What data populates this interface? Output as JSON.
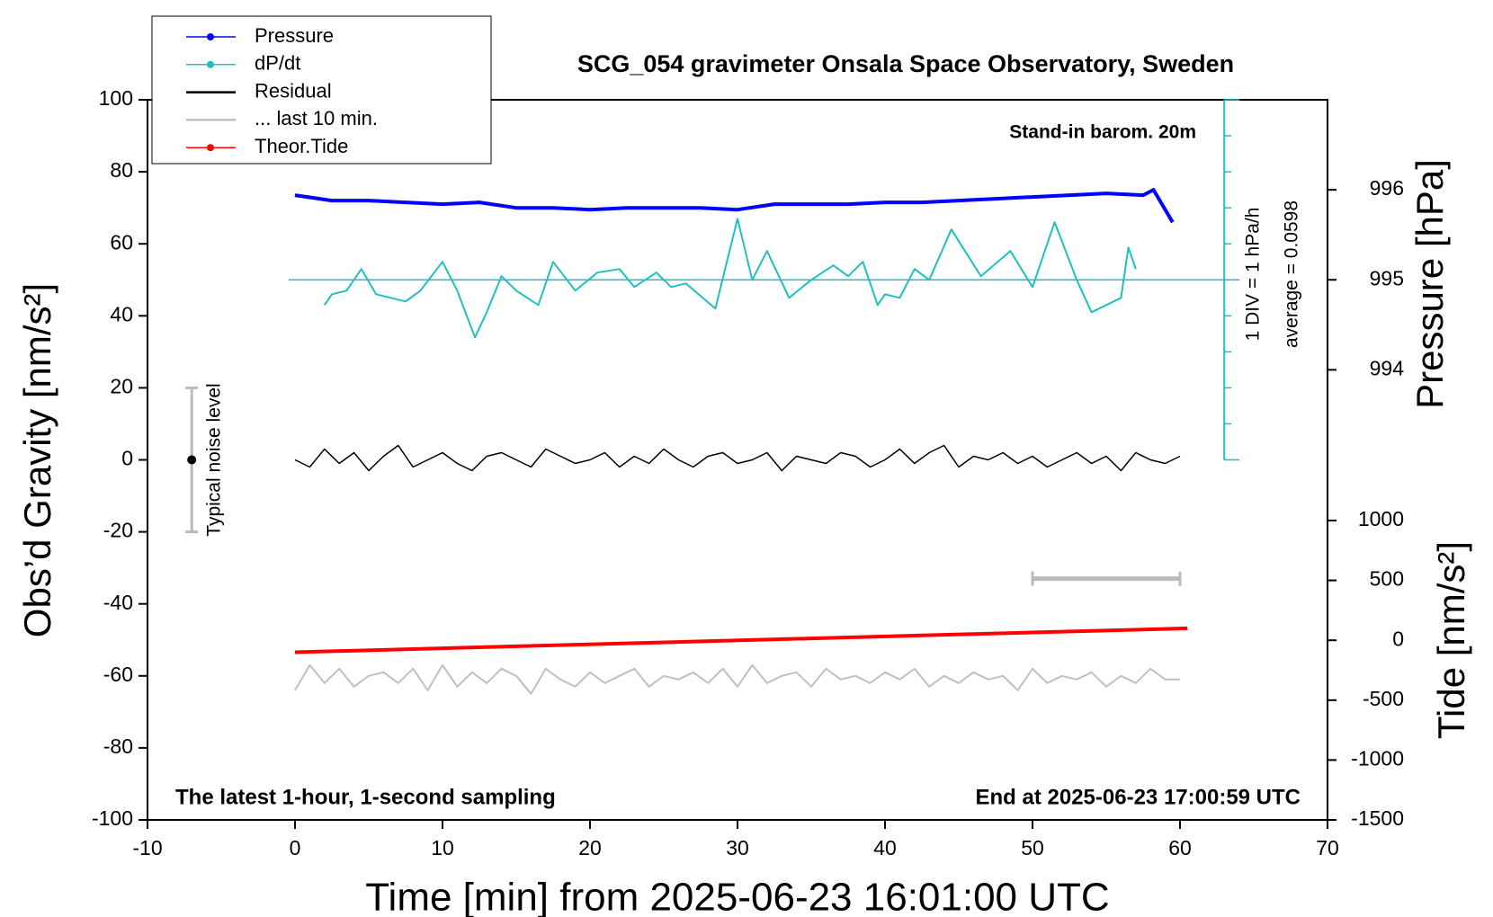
{
  "chart_data": {
    "type": "line",
    "title": "SCG_054 gravimeter Onsala Space Observatory, Sweden",
    "x_label": "Time [min] from 2025-06-23 16:01:00 UTC",
    "y_label": "Obs’d Gravity [nm/s²]",
    "y2_label": "Pressure [hPa]",
    "tide_label": "Tide [nm/s²]",
    "annotations": [
      "Stand-in barom. 20m",
      "1 DIV = 1 hPa/h",
      "average = 0.0598",
      "The latest 1-hour, 1-second sampling",
      "End at 2025-06-23 17:00:59 UTC"
    ],
    "xlim": [
      -10,
      70
    ],
    "xticks": [
      -10,
      0,
      10,
      20,
      30,
      40,
      50,
      60,
      70
    ],
    "ylim": [
      -100,
      100
    ],
    "yticks": [
      -100,
      -80,
      -60,
      -40,
      -20,
      0,
      20,
      40,
      60,
      80,
      100
    ],
    "y2lim": [
      989,
      997
    ],
    "y2ticks": [
      994,
      995,
      996
    ],
    "tide_ylim": [
      -1500,
      4513
    ],
    "tide_yticks": [
      -1500,
      -1000,
      -500,
      0,
      500,
      1000
    ],
    "noise_bar": {
      "x": -7,
      "value": 0,
      "error": 20,
      "label": "Typical noise level"
    },
    "ten_min_bar": {
      "x": [
        50,
        60
      ],
      "y": -33
    },
    "dpdt_axis": {
      "x": 63,
      "ylim": [
        0,
        100
      ],
      "zero": 50,
      "div": 10
    },
    "series": [
      {
        "name": "Pressure",
        "color": "#0000ff",
        "axis": "y2",
        "marker": true,
        "width": 4,
        "x": [
          0,
          2.5,
          5,
          7.5,
          10,
          12.5,
          15,
          17.5,
          20,
          22.5,
          25,
          27.5,
          30,
          32.5,
          35,
          37.5,
          40,
          42.5,
          45,
          47.5,
          50,
          52.5,
          55,
          57.5,
          58.2,
          59.5
        ],
        "values": [
          995.94,
          995.88,
          995.88,
          995.86,
          995.84,
          995.86,
          995.8,
          995.8,
          995.78,
          995.8,
          995.8,
          995.8,
          995.78,
          995.84,
          995.84,
          995.84,
          995.86,
          995.86,
          995.88,
          995.9,
          995.92,
          995.94,
          995.96,
          995.94,
          996,
          995.64
        ]
      },
      {
        "name": "dP/dt",
        "color": "#20c0c0",
        "axis": "y",
        "marker": true,
        "width": 2,
        "x": [
          2,
          2.5,
          3.5,
          4.5,
          5.5,
          6.5,
          7.5,
          8.5,
          10,
          11,
          12.2,
          13,
          14,
          15,
          16.5,
          17.5,
          19,
          20.5,
          22,
          23,
          24.5,
          25.5,
          26.5,
          28.5,
          30,
          31,
          32,
          33.5,
          35,
          36.5,
          37.5,
          38.5,
          39.5,
          40,
          41,
          42,
          43,
          44.5,
          46.5,
          48.5,
          50,
          51.5,
          53,
          54,
          56,
          56.5,
          57
        ],
        "values": [
          43,
          46,
          47,
          53,
          46,
          45,
          44,
          47,
          55,
          47,
          34,
          41,
          51,
          47,
          43,
          55,
          47,
          52,
          53,
          48,
          52,
          48,
          49,
          42,
          67,
          50,
          58,
          45,
          50,
          54,
          51,
          55,
          43,
          46,
          45,
          53,
          50,
          64,
          51,
          58,
          48,
          66,
          50,
          41,
          45,
          59,
          53
        ]
      },
      {
        "name": "Residual",
        "color": "#000000",
        "axis": "y",
        "width": 1.5,
        "x": [
          0,
          1,
          2,
          3,
          4,
          5,
          6,
          7,
          8,
          9,
          10,
          11,
          12,
          13,
          14,
          15,
          16,
          17,
          18,
          19,
          20,
          21,
          22,
          23,
          24,
          25,
          26,
          27,
          28,
          29,
          30,
          31,
          32,
          33,
          34,
          35,
          36,
          37,
          38,
          39,
          40,
          41,
          42,
          43,
          44,
          45,
          46,
          47,
          48,
          49,
          50,
          51,
          52,
          53,
          54,
          55,
          56,
          57,
          58,
          59,
          60
        ],
        "values": [
          0,
          -2,
          3,
          -1,
          2,
          -3,
          1,
          4,
          -2,
          0,
          2,
          -1,
          -3,
          1,
          2,
          0,
          -2,
          3,
          1,
          -1,
          0,
          2,
          -2,
          1,
          -1,
          3,
          0,
          -2,
          1,
          2,
          -1,
          0,
          2,
          -3,
          1,
          0,
          -1,
          2,
          1,
          -2,
          0,
          3,
          -1,
          2,
          4,
          -2,
          1,
          0,
          2,
          -1,
          1,
          -2,
          0,
          2,
          -1,
          1,
          -3,
          2,
          0,
          -1,
          1
        ]
      },
      {
        "name": "... last 10 min.",
        "color": "#c0c0c0",
        "axis": "y",
        "width": 2,
        "x": [
          0,
          1,
          2,
          3,
          4,
          5,
          6,
          7,
          8,
          9,
          10,
          11,
          12,
          13,
          14,
          15,
          16,
          17,
          18,
          19,
          20,
          21,
          22,
          23,
          24,
          25,
          26,
          27,
          28,
          29,
          30,
          31,
          32,
          33,
          34,
          35,
          36,
          37,
          38,
          39,
          40,
          41,
          42,
          43,
          44,
          45,
          46,
          47,
          48,
          49,
          50,
          51,
          52,
          53,
          54,
          55,
          56,
          57,
          58,
          59,
          60
        ],
        "values": [
          -64,
          -57,
          -62,
          -58,
          -63,
          -60,
          -59,
          -62,
          -58,
          -64,
          -57,
          -63,
          -59,
          -62,
          -58,
          -60,
          -65,
          -58,
          -61,
          -63,
          -59,
          -62,
          -60,
          -58,
          -63,
          -60,
          -61,
          -59,
          -62,
          -58,
          -63,
          -57,
          -62,
          -60,
          -59,
          -63,
          -58,
          -61,
          -60,
          -62,
          -59,
          -61,
          -58,
          -63,
          -60,
          -62,
          -59,
          -61,
          -60,
          -64,
          -58,
          -62,
          -60,
          -61,
          -59,
          -63,
          -60,
          -62,
          -58,
          -61,
          -61
        ]
      },
      {
        "name": "Theor.Tide",
        "color": "#ff0000",
        "axis": "tide",
        "marker": true,
        "width": 4,
        "x": [
          0,
          60.5
        ],
        "values": [
          -100,
          100
        ]
      }
    ]
  }
}
